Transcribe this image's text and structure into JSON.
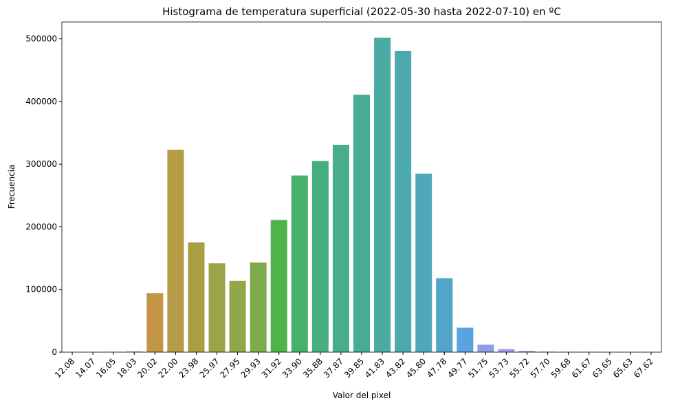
{
  "chart_data": {
    "type": "bar",
    "title": "Histograma de temperatura superficial (2022-05-30 hasta 2022-07-10) en ºC",
    "x_label": "Valor del pixel",
    "y_label": "Frecuencia",
    "categories": [
      "12.08",
      "14.07",
      "16.05",
      "18.03",
      "20.02",
      "22.00",
      "23.98",
      "25.97",
      "27.95",
      "29.93",
      "31.92",
      "33.90",
      "35.88",
      "37.87",
      "39.85",
      "41.83",
      "43.82",
      "45.80",
      "47.78",
      "49.77",
      "51.75",
      "53.73",
      "55.72",
      "57.70",
      "59.68",
      "61.67",
      "63.65",
      "65.63",
      "67.62"
    ],
    "values": [
      0,
      0,
      300,
      1000,
      94000,
      323000,
      175000,
      142000,
      114000,
      143000,
      211000,
      282000,
      305000,
      331000,
      411000,
      502000,
      481000,
      285000,
      118000,
      39000,
      12000,
      5000,
      2000,
      800,
      500,
      400,
      100,
      50,
      0
    ],
    "colors": [
      "#f77189",
      "#f5765a",
      "#e5832f",
      "#d08c32",
      "#c39545",
      "#b59b45",
      "#a89f44",
      "#9ca448",
      "#90a848",
      "#7dab4a",
      "#50b347",
      "#49b06a",
      "#47ae7e",
      "#48ad8c",
      "#49ac97",
      "#4aaba2",
      "#4caaad",
      "#4ea8b9",
      "#52a5c9",
      "#5aa2e0",
      "#8d9de7",
      "#a09be9",
      "#b497e9",
      "#c891e8",
      "#d888e4",
      "#e47fd8",
      "#f176c4",
      "#f574ac",
      "#f7739a"
    ],
    "ylim": [
      0,
      527000
    ],
    "yticks": [
      0,
      100000,
      200000,
      300000,
      400000,
      500000
    ]
  }
}
